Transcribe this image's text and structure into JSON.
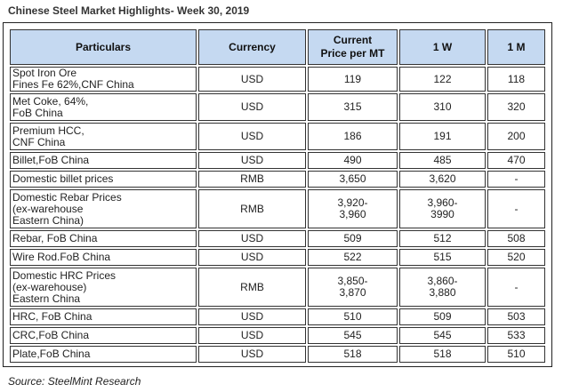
{
  "title": "Chinese Steel Market Highlights- Week 30, 2019",
  "table": {
    "headers": {
      "particulars": "Particulars",
      "currency": "Currency",
      "current_price_line1": "Current",
      "current_price_line2": "Price per MT",
      "one_week": "1 W",
      "one_month": "1 M"
    },
    "rows": [
      {
        "lines": [
          "Spot Iron Ore",
          "Fines Fe 62%,CNF China"
        ],
        "currency": "USD",
        "current": "119",
        "w1": "122",
        "m1": "118"
      },
      {
        "lines": [
          "Met Coke, 64%,",
          "FoB China"
        ],
        "currency": "USD",
        "current": "315",
        "w1": "310",
        "m1": "320"
      },
      {
        "lines": [
          "Premium HCC,",
          "CNF China"
        ],
        "currency": "USD",
        "current": "186",
        "w1": "191",
        "m1": "200"
      },
      {
        "lines": [
          "Billet,FoB China"
        ],
        "currency": "USD",
        "current": "490",
        "w1": "485",
        "m1": "470"
      },
      {
        "lines": [
          "Domestic billet prices"
        ],
        "currency": "RMB",
        "current": "3,650",
        "w1": "3,620",
        "m1": "-"
      },
      {
        "lines": [
          "Domestic Rebar Prices",
          "(ex-warehouse",
          "Eastern China)"
        ],
        "currency": "RMB",
        "current": "3,920-\n3,960",
        "w1": "3,960-\n3990",
        "m1": "-"
      },
      {
        "lines": [
          "Rebar, FoB China"
        ],
        "currency": "USD",
        "current": "509",
        "w1": "512",
        "m1": "508"
      },
      {
        "lines": [
          "Wire Rod.FoB China"
        ],
        "currency": "USD",
        "current": "522",
        "w1": "515",
        "m1": "520"
      },
      {
        "lines": [
          "Domestic HRC Prices",
          "(ex-warehouse)",
          "Eastern China"
        ],
        "currency": "RMB",
        "current": "3,850-\n3,870",
        "w1": "3,860-\n3,880",
        "m1": "-"
      },
      {
        "lines": [
          "HRC, FoB China"
        ],
        "currency": "USD",
        "current": "510",
        "w1": "509",
        "m1": "503"
      },
      {
        "lines": [
          "CRC,FoB China"
        ],
        "currency": "USD",
        "current": "545",
        "w1": "545",
        "m1": "533"
      },
      {
        "lines": [
          "Plate,FoB China"
        ],
        "currency": "USD",
        "current": "518",
        "w1": "518",
        "m1": "510"
      }
    ]
  },
  "source": "Source: SteelMint Research",
  "colors": {
    "header_bg": "#c5d9f1",
    "border": "#333333"
  }
}
